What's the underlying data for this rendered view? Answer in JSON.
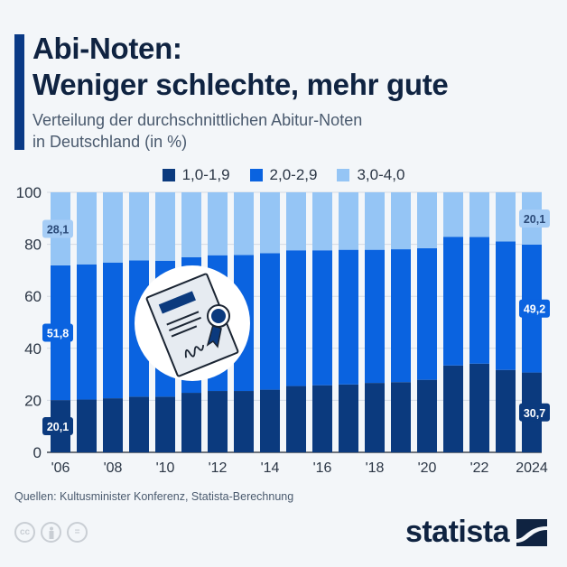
{
  "header": {
    "title_line1": "Abi-Noten:",
    "title_line2": "Weniger schlechte, mehr gute",
    "subtitle_line1": "Verteilung der durchschnittlichen Abitur-Noten",
    "subtitle_line2": "in Deutschland (in %)"
  },
  "colors": {
    "accent": "#0a3a86",
    "series_dark": "#0b3a7e",
    "series_mid": "#0a63e0",
    "series_light": "#95c5f5",
    "background": "#f3f6f9"
  },
  "chart_data": {
    "type": "bar",
    "stacked": true,
    "title": "Abi-Noten: Weniger schlechte, mehr gute",
    "subtitle": "Verteilung der durchschnittlichen Abitur-Noten in Deutschland (in %)",
    "xlabel": "",
    "ylabel": "",
    "ylim": [
      0,
      100
    ],
    "yticks": [
      0,
      20,
      40,
      60,
      80,
      100
    ],
    "grid": true,
    "legend_position": "top-center",
    "categories": [
      "2006",
      "2007",
      "2008",
      "2009",
      "2010",
      "2011",
      "2012",
      "2013",
      "2014",
      "2015",
      "2016",
      "2017",
      "2018",
      "2019",
      "2020",
      "2021",
      "2022",
      "2023",
      "2024"
    ],
    "xtick_labels": [
      "'06",
      "",
      "'08",
      "",
      "'10",
      "",
      "'12",
      "",
      "'14",
      "",
      "'16",
      "",
      "'18",
      "",
      "'20",
      "",
      "'22",
      "",
      "2024"
    ],
    "series": [
      {
        "name": "1,0-1,9",
        "color": "#0b3a7e",
        "values": [
          20.1,
          20.3,
          20.8,
          21.4,
          21.4,
          22.9,
          23.6,
          23.6,
          24.1,
          25.5,
          25.8,
          26.1,
          26.7,
          27.0,
          27.9,
          33.4,
          34.1,
          31.7,
          30.7
        ]
      },
      {
        "name": "2,0-2,9",
        "color": "#0a63e0",
        "values": [
          51.8,
          52.0,
          52.2,
          52.4,
          52.3,
          52.1,
          52.2,
          52.3,
          52.5,
          52.2,
          51.9,
          51.8,
          51.2,
          51.1,
          50.6,
          49.5,
          48.7,
          49.4,
          49.2
        ]
      },
      {
        "name": "3,0-4,0",
        "color": "#95c5f5",
        "values": [
          28.1,
          27.7,
          27.0,
          26.2,
          26.3,
          25.0,
          24.2,
          24.1,
          23.4,
          22.3,
          22.3,
          22.1,
          22.1,
          21.9,
          21.5,
          17.1,
          17.2,
          18.9,
          20.1
        ]
      }
    ],
    "annotations": [
      {
        "category": "2006",
        "series": "3,0-4,0",
        "label": "28,1"
      },
      {
        "category": "2006",
        "series": "2,0-2,9",
        "label": "51,8"
      },
      {
        "category": "2006",
        "series": "1,0-1,9",
        "label": "20,1"
      },
      {
        "category": "2024",
        "series": "3,0-4,0",
        "label": "20,1"
      },
      {
        "category": "2024",
        "series": "2,0-2,9",
        "label": "49,2"
      },
      {
        "category": "2024",
        "series": "1,0-1,9",
        "label": "30,7"
      }
    ]
  },
  "illustration": {
    "icon": "certificate-icon"
  },
  "footer": {
    "source": "Quellen: Kultusminister Konferenz, Statista-Berechnung",
    "license_icons": [
      "cc-icon",
      "by-icon",
      "nd-icon"
    ],
    "cc_label": "cc",
    "nd_label": "=",
    "brand": "statista"
  }
}
